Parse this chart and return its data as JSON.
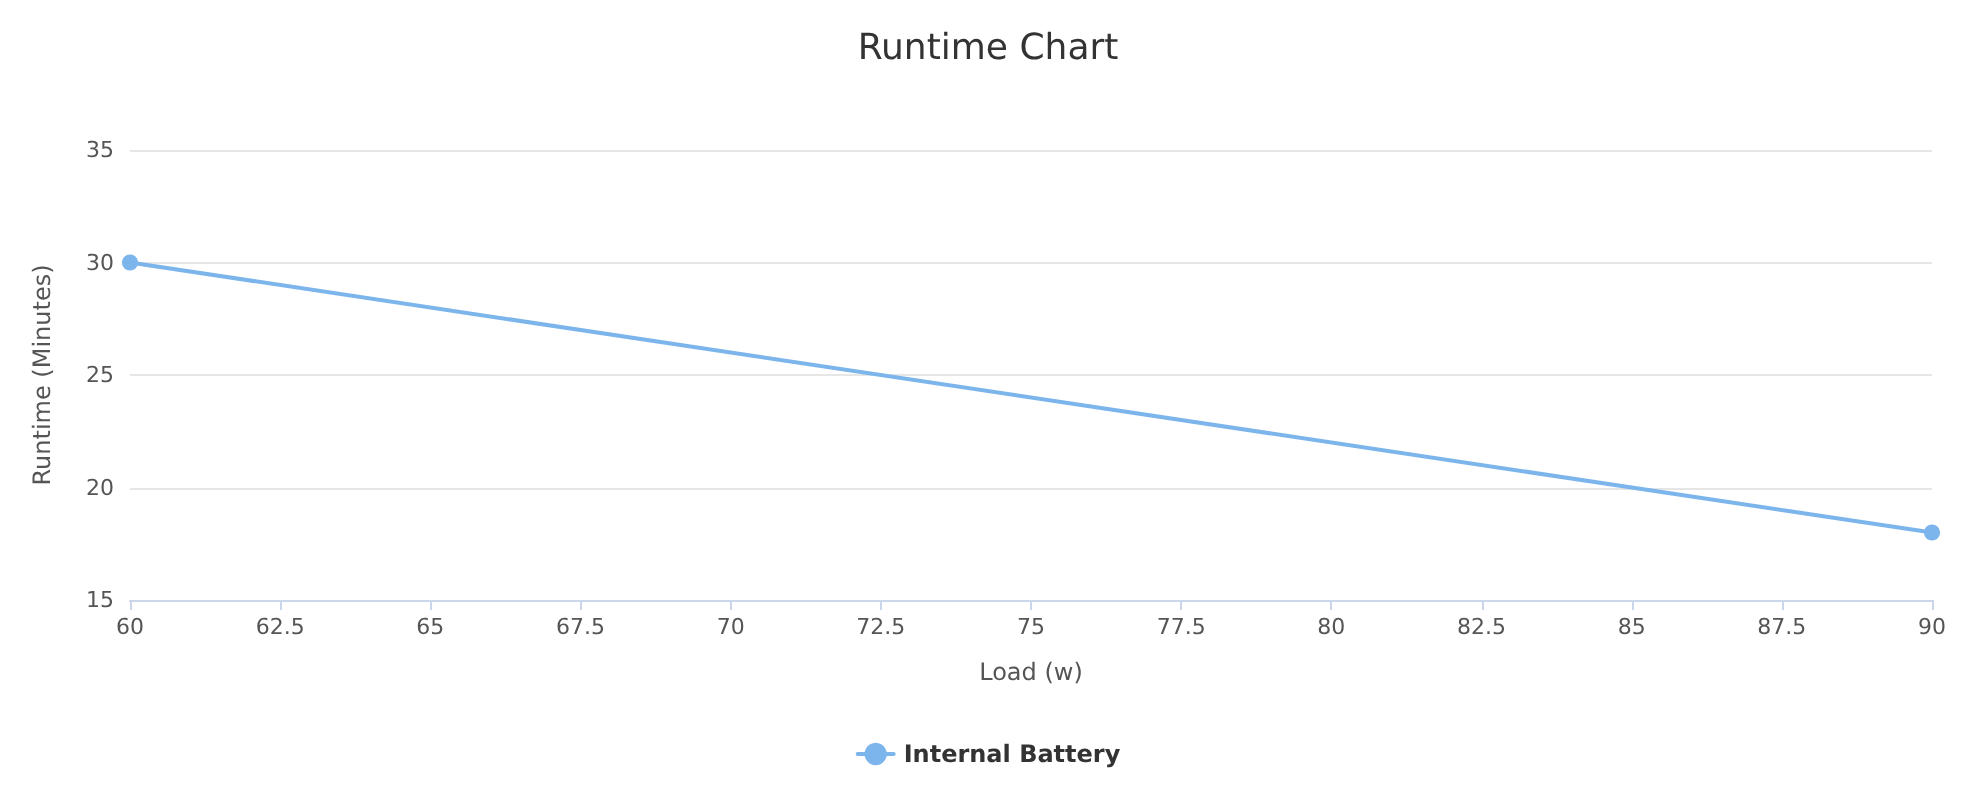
{
  "chart_data": {
    "type": "line",
    "title": "Runtime Chart",
    "xlabel": "Load (w)",
    "ylabel": "Runtime (Minutes)",
    "x": [
      60,
      90
    ],
    "series": [
      {
        "name": "Internal Battery",
        "color": "#7cb5ec",
        "values": [
          30,
          18
        ]
      }
    ],
    "xlim": [
      60,
      90
    ],
    "xticks": [
      60,
      62.5,
      65,
      67.5,
      70,
      72.5,
      75,
      77.5,
      80,
      82.5,
      85,
      87.5,
      90
    ],
    "ylim": [
      15,
      35
    ],
    "yticks": [
      15,
      20,
      25,
      30,
      35
    ],
    "grid": "y",
    "legend": "bottom",
    "marker": "circle",
    "line_style": "solid"
  }
}
